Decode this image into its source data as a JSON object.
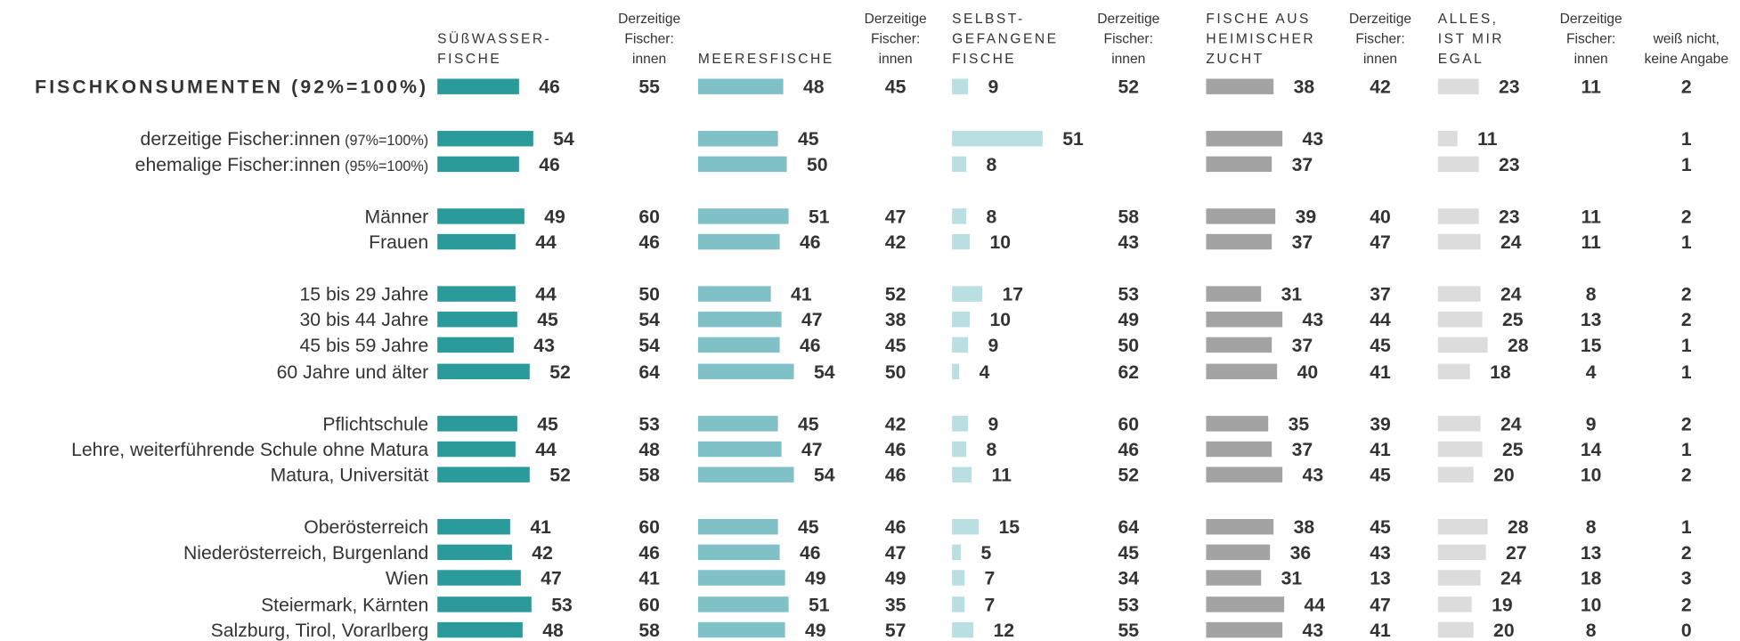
{
  "chart_data": {
    "type": "bar",
    "rows": [
      {
        "label": "FISCHKONSUMENTEN (92%=100%)"
      },
      {
        "label": "derzeitige Fischer:innen",
        "note": "(97%=100%)"
      },
      {
        "label": "ehemalige Fischer:innen",
        "note": "(95%=100%)"
      },
      {
        "label": "Männer"
      },
      {
        "label": "Frauen"
      },
      {
        "label": "15 bis 29 Jahre"
      },
      {
        "label": "30 bis 44 Jahre"
      },
      {
        "label": "45 bis 59 Jahre"
      },
      {
        "label": "60 Jahre und älter"
      },
      {
        "label": "Pflichtschule"
      },
      {
        "label": "Lehre, weiterführende Schule ohne Matura"
      },
      {
        "label": "Matura, Universität"
      },
      {
        "label": "Oberösterreich"
      },
      {
        "label": "Niederösterreich, Burgenland"
      },
      {
        "label": "Wien"
      },
      {
        "label": "Steiermark, Kärnten"
      },
      {
        "label": "Salzburg, Tirol, Vorarlberg"
      }
    ],
    "series": [
      {
        "name": [
          "SÜßWASSER-",
          "FISCHE"
        ],
        "color": "#2a9a9a",
        "values": [
          46,
          54,
          46,
          49,
          44,
          44,
          45,
          43,
          52,
          45,
          44,
          52,
          41,
          42,
          47,
          53,
          48
        ],
        "sub": {
          "name": [
            "Derzeitige",
            "Fischer:",
            "innen"
          ],
          "values": [
            55,
            null,
            null,
            60,
            46,
            50,
            54,
            54,
            64,
            53,
            48,
            58,
            60,
            46,
            41,
            60,
            58
          ]
        }
      },
      {
        "name": [
          "MEERESFISCHE"
        ],
        "color": "#7fc1c6",
        "values": [
          48,
          45,
          50,
          51,
          46,
          41,
          47,
          46,
          54,
          45,
          47,
          54,
          45,
          46,
          49,
          51,
          49
        ],
        "sub": {
          "name": [
            "Derzeitige",
            "Fischer:",
            "innen"
          ],
          "values": [
            45,
            null,
            null,
            47,
            42,
            52,
            38,
            45,
            50,
            42,
            46,
            46,
            46,
            47,
            49,
            35,
            57
          ]
        }
      },
      {
        "name": [
          "SELBST-",
          "GEFANGENE",
          "FISCHE"
        ],
        "color": "#b9dfe3",
        "values": [
          9,
          51,
          8,
          8,
          10,
          17,
          10,
          9,
          4,
          9,
          8,
          11,
          15,
          5,
          7,
          7,
          12
        ],
        "sub": {
          "name": [
            "Derzeitige",
            "Fischer:",
            "innen"
          ],
          "values": [
            52,
            null,
            null,
            58,
            43,
            53,
            49,
            50,
            62,
            60,
            46,
            52,
            64,
            45,
            34,
            53,
            55
          ]
        }
      },
      {
        "name": [
          "FISCHE AUS",
          "HEIMISCHER",
          "ZUCHT"
        ],
        "color": "#a3a3a3",
        "values": [
          38,
          43,
          37,
          39,
          37,
          31,
          43,
          37,
          40,
          35,
          37,
          43,
          38,
          36,
          31,
          44,
          43
        ],
        "sub": {
          "name": [
            "Derzeitige",
            "Fischer:",
            "innen"
          ],
          "values": [
            42,
            null,
            null,
            40,
            47,
            37,
            44,
            45,
            41,
            39,
            41,
            45,
            45,
            43,
            13,
            47,
            41
          ]
        }
      },
      {
        "name": [
          "ALLES,",
          "IST MIR",
          "EGAL"
        ],
        "color": "#dcdcdc",
        "values": [
          23,
          11,
          23,
          23,
          24,
          24,
          25,
          28,
          18,
          24,
          25,
          20,
          28,
          27,
          24,
          19,
          20
        ],
        "sub": {
          "name": [
            "Derzeitige",
            "Fischer:",
            "innen"
          ],
          "values": [
            11,
            null,
            null,
            11,
            11,
            8,
            13,
            15,
            4,
            9,
            14,
            10,
            8,
            13,
            18,
            10,
            8
          ]
        }
      }
    ],
    "last": {
      "name": [
        "weiß nicht,",
        "keine Angabe"
      ],
      "values": [
        2,
        1,
        1,
        2,
        1,
        2,
        2,
        1,
        1,
        2,
        1,
        2,
        1,
        2,
        3,
        2,
        0
      ]
    }
  }
}
